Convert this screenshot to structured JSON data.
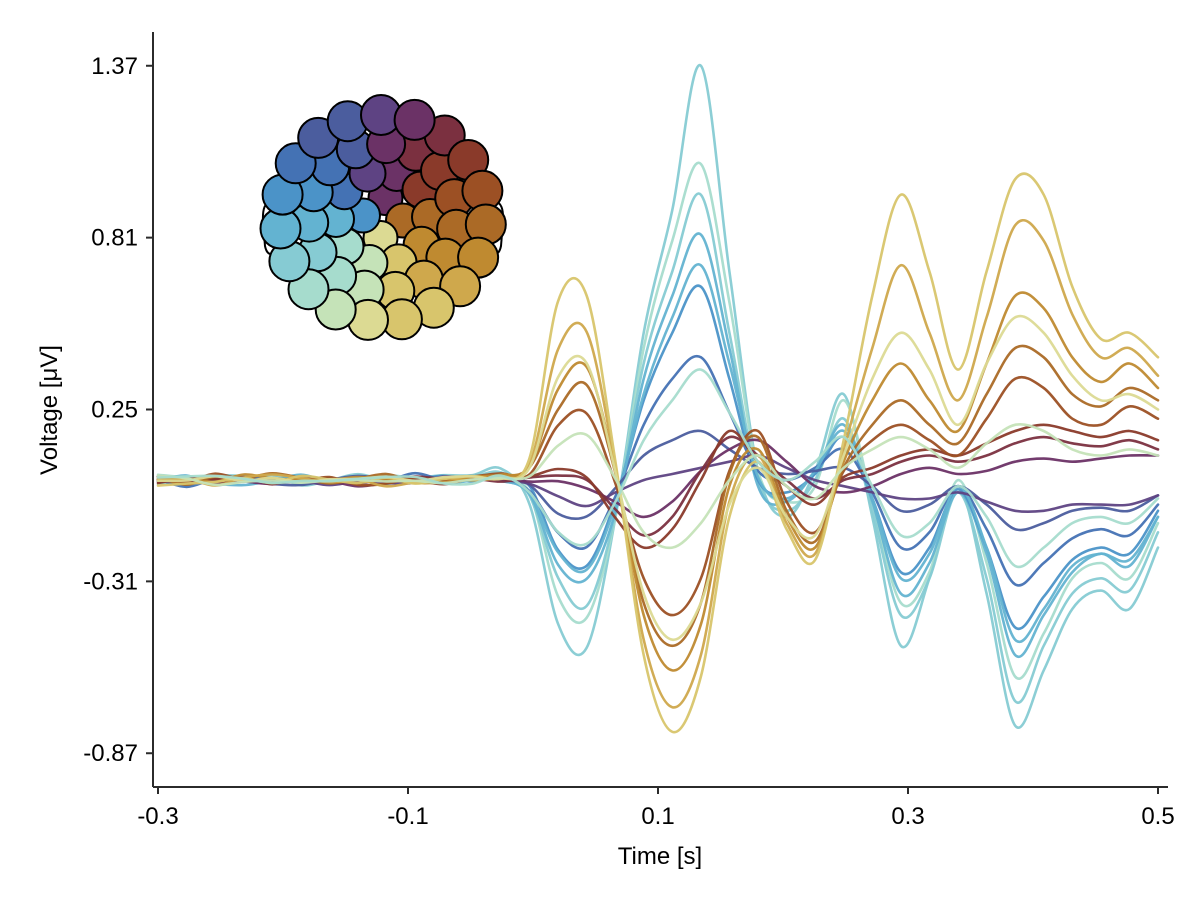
{
  "chart_data": {
    "type": "line",
    "title": "",
    "xlabel": "Time [s]",
    "ylabel": "Voltage [μV]",
    "xlim": [
      -0.3,
      0.5
    ],
    "ylim": [
      -0.98,
      1.48
    ],
    "xticks": [
      -0.3,
      -0.1,
      0.1,
      0.3,
      0.5
    ],
    "xtick_labels": [
      "-0.3",
      "-0.1",
      "0.1",
      "0.3",
      "0.5"
    ],
    "yticks": [
      1.37,
      0.81,
      0.25,
      -0.31,
      -0.87
    ],
    "ytick_labels": [
      "1.37",
      "0.81",
      "0.25",
      "-0.31",
      "-0.87"
    ],
    "grid": false,
    "legend": "topoplot-inset-top-left",
    "colormap": [
      "#5e4383",
      "#6b3266",
      "#7b3040",
      "#8a3a2a",
      "#9c5024",
      "#ab6a26",
      "#bf8a30",
      "#cfa84c",
      "#d8c56c",
      "#dcda93",
      "#c5e3b8",
      "#a6dccd",
      "#86cbd3",
      "#63b3d1",
      "#4b93c8",
      "#4472b4",
      "#4b5d9e"
    ],
    "series": [
      {
        "color": "#86cbd3",
        "values": [
          0.02,
          0.01,
          0.03,
          0.02,
          0.01,
          0.03,
          0.02,
          0.01,
          0.03,
          0.02,
          0.03,
          0.04,
          0.05,
          -0.05,
          -0.45,
          -0.52,
          -0.1,
          0.5,
          0.9,
          1.37,
          0.7,
          0.05,
          -0.1,
          0.05,
          0.3,
          -0.1,
          -0.52,
          -0.3,
          0.0,
          -0.35,
          -0.78,
          -0.6,
          -0.4,
          -0.34,
          -0.4,
          -0.2
        ]
      },
      {
        "color": "#a6dccd",
        "values": [
          0.03,
          0.02,
          0.02,
          0.03,
          0.01,
          0.02,
          0.03,
          0.02,
          0.02,
          0.01,
          0.02,
          0.03,
          0.04,
          -0.03,
          -0.35,
          -0.42,
          -0.1,
          0.45,
          0.8,
          1.05,
          0.6,
          0.05,
          -0.05,
          0.0,
          0.28,
          -0.05,
          -0.38,
          -0.28,
          0.02,
          -0.25,
          -0.62,
          -0.48,
          -0.3,
          -0.25,
          -0.3,
          -0.12
        ]
      },
      {
        "color": "#86cbd3",
        "values": [
          0.01,
          0.02,
          0.01,
          0.02,
          0.03,
          0.01,
          0.02,
          0.03,
          0.01,
          0.02,
          0.01,
          0.02,
          0.04,
          -0.02,
          -0.3,
          -0.38,
          -0.1,
          0.4,
          0.7,
          0.95,
          0.5,
          0.02,
          -0.08,
          0.02,
          0.22,
          -0.08,
          -0.42,
          -0.3,
          -0.02,
          -0.3,
          -0.7,
          -0.52,
          -0.35,
          -0.3,
          -0.34,
          -0.15
        ]
      },
      {
        "color": "#63b3d1",
        "values": [
          0.02,
          0.03,
          0.01,
          0.02,
          0.02,
          0.03,
          0.01,
          0.02,
          0.02,
          0.03,
          0.02,
          0.03,
          0.03,
          -0.02,
          -0.25,
          -0.3,
          -0.08,
          0.35,
          0.62,
          0.82,
          0.45,
          0.0,
          -0.05,
          0.05,
          0.2,
          -0.05,
          -0.35,
          -0.25,
          -0.02,
          -0.22,
          -0.55,
          -0.42,
          -0.28,
          -0.22,
          -0.26,
          -0.1
        ]
      },
      {
        "color": "#4b93c8",
        "values": [
          0.01,
          0.02,
          0.03,
          0.01,
          0.02,
          0.02,
          0.03,
          0.01,
          0.02,
          0.02,
          0.03,
          0.02,
          0.03,
          -0.01,
          -0.2,
          -0.26,
          -0.06,
          0.28,
          0.5,
          0.65,
          0.35,
          0.02,
          -0.02,
          0.04,
          0.16,
          -0.04,
          -0.28,
          -0.2,
          -0.01,
          -0.2,
          -0.46,
          -0.36,
          -0.24,
          -0.2,
          -0.22,
          -0.08
        ]
      },
      {
        "color": "#4472b4",
        "values": [
          0.02,
          0.01,
          0.02,
          0.02,
          0.03,
          0.01,
          0.02,
          0.02,
          0.01,
          0.03,
          0.02,
          0.03,
          0.02,
          -0.02,
          -0.16,
          -0.2,
          -0.04,
          0.2,
          0.35,
          0.42,
          0.24,
          0.05,
          0.02,
          0.06,
          0.12,
          -0.02,
          -0.2,
          -0.15,
          0.0,
          -0.14,
          -0.32,
          -0.25,
          -0.17,
          -0.14,
          -0.16,
          -0.06
        ]
      },
      {
        "color": "#63b3d1",
        "values": [
          0.03,
          0.02,
          0.02,
          0.01,
          0.02,
          0.03,
          0.02,
          0.01,
          0.03,
          0.02,
          0.01,
          0.02,
          0.03,
          -0.02,
          -0.22,
          -0.28,
          -0.07,
          0.3,
          0.55,
          0.72,
          0.4,
          0.03,
          -0.04,
          0.05,
          0.18,
          -0.04,
          -0.3,
          -0.22,
          0.0,
          -0.2,
          -0.5,
          -0.4,
          -0.26,
          -0.22,
          -0.24,
          -0.1
        ]
      },
      {
        "color": "#4b5d9e",
        "values": [
          0.02,
          0.02,
          0.01,
          0.02,
          0.02,
          0.01,
          0.02,
          0.03,
          0.02,
          0.02,
          0.02,
          0.02,
          0.02,
          0.0,
          -0.08,
          -0.1,
          0.0,
          0.1,
          0.15,
          0.18,
          0.12,
          0.06,
          0.04,
          0.05,
          0.06,
          0.0,
          -0.08,
          -0.06,
          0.0,
          -0.06,
          -0.14,
          -0.12,
          -0.08,
          -0.07,
          -0.08,
          -0.03
        ]
      },
      {
        "color": "#5e4383",
        "values": [
          0.01,
          0.02,
          0.02,
          0.01,
          0.02,
          0.02,
          0.01,
          0.02,
          0.02,
          0.01,
          0.02,
          0.02,
          0.02,
          0.0,
          -0.04,
          -0.06,
          -0.02,
          0.02,
          0.04,
          0.06,
          0.08,
          0.1,
          0.06,
          0.02,
          0.0,
          -0.02,
          -0.04,
          -0.04,
          -0.02,
          -0.05,
          -0.08,
          -0.08,
          -0.06,
          -0.06,
          -0.06,
          -0.03
        ]
      },
      {
        "color": "#6b3266",
        "values": [
          0.02,
          0.02,
          0.01,
          0.02,
          0.02,
          0.02,
          0.02,
          0.01,
          0.02,
          0.03,
          0.02,
          0.02,
          0.02,
          0.01,
          0.02,
          0.0,
          -0.05,
          -0.1,
          -0.05,
          0.05,
          0.12,
          0.15,
          0.08,
          0.0,
          -0.02,
          0.0,
          0.04,
          0.06,
          0.04,
          0.05,
          0.08,
          0.09,
          0.08,
          0.09,
          0.1,
          0.1
        ]
      },
      {
        "color": "#7b3040",
        "values": [
          0.02,
          0.03,
          0.02,
          0.02,
          0.01,
          0.02,
          0.02,
          0.03,
          0.02,
          0.02,
          0.03,
          0.02,
          0.02,
          0.02,
          0.04,
          0.02,
          -0.08,
          -0.16,
          -0.1,
          0.05,
          0.16,
          0.1,
          0.02,
          -0.04,
          0.02,
          0.04,
          0.08,
          0.1,
          0.08,
          0.1,
          0.14,
          0.16,
          0.14,
          0.13,
          0.15,
          0.12
        ]
      },
      {
        "color": "#8a3a2a",
        "values": [
          0.01,
          0.02,
          0.02,
          0.03,
          0.02,
          0.01,
          0.03,
          0.02,
          0.02,
          0.02,
          0.01,
          0.02,
          0.03,
          0.03,
          0.06,
          0.03,
          -0.1,
          -0.2,
          -0.14,
          0.02,
          0.18,
          0.08,
          0.0,
          -0.06,
          0.03,
          0.06,
          0.1,
          0.12,
          0.1,
          0.14,
          0.18,
          0.2,
          0.18,
          0.16,
          0.18,
          0.15
        ]
      },
      {
        "color": "#9c5024",
        "values": [
          0.02,
          0.02,
          0.03,
          0.01,
          0.02,
          0.02,
          0.02,
          0.01,
          0.02,
          0.03,
          0.02,
          0.02,
          0.03,
          0.05,
          0.2,
          0.24,
          0.02,
          -0.3,
          -0.42,
          -0.3,
          0.05,
          0.18,
          -0.05,
          -0.15,
          0.05,
          0.15,
          0.2,
          0.15,
          0.1,
          0.22,
          0.35,
          0.32,
          0.22,
          0.2,
          0.26,
          0.22
        ]
      },
      {
        "color": "#ab6a26",
        "values": [
          0.02,
          0.01,
          0.02,
          0.02,
          0.03,
          0.02,
          0.01,
          0.02,
          0.03,
          0.02,
          0.02,
          0.03,
          0.03,
          0.06,
          0.26,
          0.32,
          0.04,
          -0.38,
          -0.52,
          -0.38,
          0.04,
          0.16,
          -0.08,
          -0.18,
          0.06,
          0.2,
          0.28,
          0.2,
          0.14,
          0.3,
          0.45,
          0.42,
          0.3,
          0.26,
          0.32,
          0.28
        ]
      },
      {
        "color": "#bf8a30",
        "values": [
          0.03,
          0.02,
          0.02,
          0.03,
          0.02,
          0.01,
          0.02,
          0.02,
          0.03,
          0.02,
          0.02,
          0.02,
          0.03,
          0.07,
          0.32,
          0.38,
          0.05,
          -0.42,
          -0.6,
          -0.45,
          0.0,
          0.12,
          -0.1,
          -0.2,
          0.08,
          0.28,
          0.4,
          0.28,
          0.18,
          0.4,
          0.62,
          0.58,
          0.42,
          0.34,
          0.4,
          0.32
        ]
      },
      {
        "color": "#cfa84c",
        "values": [
          0.02,
          0.02,
          0.01,
          0.02,
          0.03,
          0.02,
          0.02,
          0.03,
          0.01,
          0.02,
          0.03,
          0.02,
          0.03,
          0.08,
          0.45,
          0.5,
          0.06,
          -0.5,
          -0.72,
          -0.55,
          -0.05,
          0.1,
          -0.12,
          -0.22,
          0.12,
          0.45,
          0.72,
          0.5,
          0.28,
          0.55,
          0.85,
          0.8,
          0.56,
          0.42,
          0.45,
          0.36
        ]
      },
      {
        "color": "#d8c56c",
        "values": [
          0.01,
          0.02,
          0.02,
          0.02,
          0.01,
          0.03,
          0.02,
          0.02,
          0.02,
          0.01,
          0.02,
          0.03,
          0.03,
          0.1,
          0.6,
          0.62,
          0.08,
          -0.55,
          -0.8,
          -0.62,
          -0.1,
          0.08,
          -0.14,
          -0.24,
          0.15,
          0.62,
          0.95,
          0.7,
          0.38,
          0.7,
          1.0,
          0.95,
          0.65,
          0.48,
          0.5,
          0.42
        ]
      },
      {
        "color": "#dcda93",
        "values": [
          0.02,
          0.03,
          0.02,
          0.01,
          0.02,
          0.02,
          0.03,
          0.02,
          0.02,
          0.02,
          0.03,
          0.02,
          0.02,
          0.06,
          0.35,
          0.4,
          0.05,
          -0.35,
          -0.5,
          -0.38,
          -0.06,
          0.06,
          -0.1,
          -0.16,
          0.1,
          0.35,
          0.5,
          0.38,
          0.2,
          0.4,
          0.55,
          0.5,
          0.36,
          0.28,
          0.3,
          0.25
        ]
      },
      {
        "color": "#c5e3b8",
        "values": [
          0.03,
          0.02,
          0.01,
          0.02,
          0.03,
          0.02,
          0.01,
          0.02,
          0.02,
          0.03,
          0.02,
          0.01,
          0.02,
          0.03,
          0.12,
          0.16,
          0.02,
          -0.15,
          -0.2,
          -0.12,
          0.02,
          0.1,
          0.0,
          -0.04,
          0.06,
          0.12,
          0.16,
          0.12,
          0.06,
          0.14,
          0.2,
          0.18,
          0.12,
          0.1,
          0.12,
          0.1
        ]
      },
      {
        "color": "#a6dccd",
        "values": [
          0.02,
          0.02,
          0.03,
          0.02,
          0.02,
          0.01,
          0.02,
          0.02,
          0.03,
          0.02,
          0.01,
          0.02,
          0.03,
          -0.01,
          -0.14,
          -0.2,
          -0.05,
          0.15,
          0.28,
          0.38,
          0.24,
          0.08,
          0.02,
          0.08,
          0.16,
          0.0,
          -0.16,
          -0.12,
          0.0,
          -0.1,
          -0.26,
          -0.2,
          -0.12,
          -0.1,
          -0.12,
          -0.04
        ]
      }
    ]
  }
}
